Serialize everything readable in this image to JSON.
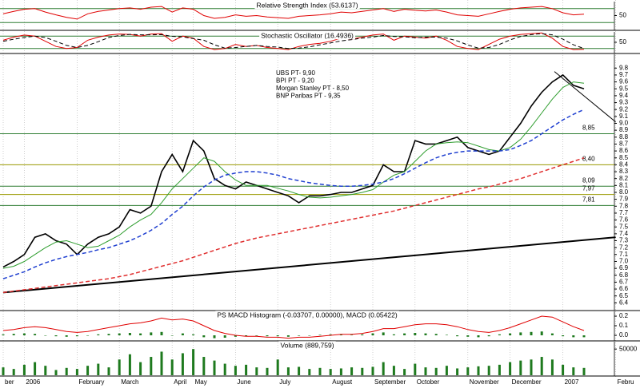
{
  "chart_data": [
    {
      "type": "line",
      "title": "Relative Strength Index (53.6137)",
      "ylim": [
        10,
        90
      ],
      "yticks": [
        50
      ],
      "levels": [
        30,
        70
      ],
      "level_color": "#2e7d32",
      "series": [
        {
          "color": "#e00000",
          "values": [
            55,
            62,
            68,
            70,
            60,
            52,
            45,
            40,
            55,
            62,
            66,
            70,
            72,
            68,
            74,
            76,
            60,
            72,
            68,
            50,
            42,
            45,
            52,
            48,
            50,
            46,
            44,
            42,
            48,
            50,
            52,
            55,
            60,
            58,
            62,
            66,
            70,
            62,
            68,
            65,
            63,
            66,
            60,
            52,
            50,
            48,
            55,
            62,
            68,
            72,
            74,
            76,
            70,
            58,
            52,
            54
          ]
        }
      ]
    },
    {
      "type": "line",
      "title": "Stochastic Oscillator (16.4936)",
      "ylim": [
        0,
        100
      ],
      "yticks": [
        50
      ],
      "levels": [
        20,
        80
      ],
      "level_color": "#2e7d32",
      "series": [
        {
          "color": "#e00000",
          "values": [
            60,
            75,
            85,
            80,
            55,
            30,
            20,
            25,
            60,
            75,
            85,
            90,
            88,
            80,
            90,
            92,
            55,
            80,
            70,
            30,
            15,
            20,
            40,
            30,
            35,
            25,
            20,
            15,
            30,
            40,
            45,
            55,
            70,
            65,
            75,
            85,
            90,
            60,
            80,
            75,
            70,
            80,
            60,
            30,
            20,
            15,
            40,
            65,
            80,
            88,
            92,
            95,
            70,
            30,
            15,
            16
          ]
        },
        {
          "color": "#000000",
          "dash": true,
          "values": [
            55,
            65,
            73,
            80,
            73,
            55,
            35,
            25,
            35,
            53,
            73,
            83,
            88,
            86,
            86,
            87,
            79,
            76,
            68,
            60,
            38,
            22,
            25,
            30,
            35,
            30,
            27,
            20,
            22,
            28,
            38,
            47,
            57,
            63,
            70,
            75,
            83,
            78,
            77,
            72,
            75,
            75,
            70,
            57,
            37,
            22,
            25,
            40,
            62,
            78,
            87,
            92,
            86,
            65,
            38,
            20
          ]
        }
      ]
    },
    {
      "type": "line",
      "categories": [
        "ber",
        null,
        "2006",
        null,
        null,
        null,
        null,
        "February",
        null,
        null,
        null,
        "March",
        null,
        null,
        null,
        null,
        "April",
        null,
        "May",
        null,
        null,
        null,
        "June",
        null,
        null,
        null,
        "July",
        null,
        null,
        null,
        null,
        "August",
        null,
        null,
        null,
        "September",
        null,
        null,
        null,
        "October",
        null,
        null,
        null,
        null,
        "November",
        null,
        null,
        null,
        "December",
        null,
        null,
        null,
        null,
        "2007",
        null,
        null,
        null,
        null,
        "Febru"
      ],
      "ylim": [
        6.3,
        10.0
      ],
      "yticks": [
        6.4,
        6.5,
        6.6,
        6.7,
        6.8,
        6.9,
        {
          "value": 7,
          "label": "7.0"
        },
        7.1,
        7.2,
        7.3,
        7.4,
        7.5,
        7.6,
        7.7,
        7.8,
        7.9,
        {
          "value": 8,
          "label": "8.0"
        },
        8.1,
        8.2,
        8.3,
        8.4,
        8.5,
        8.6,
        8.7,
        8.8,
        8.9,
        {
          "value": 9,
          "label": "9.0"
        },
        9.1,
        9.2,
        9.3,
        9.4,
        9.5,
        9.6,
        9.7,
        9.8
      ],
      "levels": [
        {
          "value": 8.85,
          "label": "8,85",
          "color": "#2e7d32"
        },
        {
          "value": 8.4,
          "label": "8,40",
          "color": "#9a9a00"
        },
        {
          "value": 8.09,
          "label": "8,09",
          "color": "#2e7d32"
        },
        {
          "value": 7.97,
          "label": "7,97",
          "color": "#9a9a00"
        },
        {
          "value": 7.81,
          "label": "7,81",
          "color": "#2e7d32"
        }
      ],
      "trendlines": [
        {
          "x": [
            0,
            58
          ],
          "y": [
            6.55,
            7.35
          ]
        },
        {
          "x": [
            52.2,
            58
          ],
          "y": [
            9.75,
            9.02
          ]
        }
      ],
      "annotations": [
        "UBS PT- 9,90",
        "BPI PT - 9,20",
        "Morgan Stanley PT - 8,50",
        "BNP Paribas PT - 9,35"
      ],
      "series": [
        {
          "color": "#000000",
          "width": 1.6,
          "values": [
            6.92,
            7.0,
            7.1,
            7.35,
            7.4,
            7.3,
            7.25,
            7.1,
            7.25,
            7.35,
            7.4,
            7.5,
            7.75,
            7.7,
            7.8,
            8.3,
            8.55,
            8.3,
            8.75,
            8.6,
            8.2,
            8.1,
            8.05,
            8.15,
            8.1,
            8.05,
            8.0,
            7.95,
            7.85,
            7.95,
            7.95,
            7.97,
            8.0,
            8.0,
            8.05,
            8.1,
            8.4,
            8.3,
            8.3,
            8.75,
            8.7,
            8.7,
            8.75,
            8.8,
            8.65,
            8.6,
            8.55,
            8.6,
            8.8,
            9.0,
            9.25,
            9.45,
            9.6,
            9.7,
            9.55,
            9.5,
            null,
            null,
            null
          ]
        },
        {
          "color": "#2e9d2e",
          "width": 1,
          "values": [
            6.9,
            6.93,
            7.0,
            7.1,
            7.2,
            7.28,
            7.3,
            7.25,
            7.2,
            7.22,
            7.3,
            7.38,
            7.5,
            7.6,
            7.68,
            7.85,
            8.05,
            8.2,
            8.35,
            8.5,
            8.45,
            8.3,
            8.18,
            8.1,
            8.1,
            8.1,
            8.06,
            8.02,
            7.97,
            7.93,
            7.92,
            7.93,
            7.95,
            7.97,
            8.0,
            8.04,
            8.15,
            8.25,
            8.3,
            8.45,
            8.6,
            8.7,
            8.72,
            8.73,
            8.72,
            8.67,
            8.62,
            8.6,
            8.65,
            8.77,
            8.95,
            9.15,
            9.35,
            9.52,
            9.6,
            9.58,
            null,
            null,
            null
          ]
        },
        {
          "color": "#1f3fd0",
          "dash": true,
          "width": 1.5,
          "values": [
            6.75,
            6.8,
            6.85,
            6.92,
            6.98,
            7.03,
            7.07,
            7.1,
            7.13,
            7.17,
            7.2,
            7.25,
            7.3,
            7.37,
            7.45,
            7.55,
            7.68,
            7.8,
            7.95,
            8.08,
            8.18,
            8.25,
            8.28,
            8.3,
            8.3,
            8.28,
            8.25,
            8.2,
            8.17,
            8.14,
            8.12,
            8.1,
            8.09,
            8.09,
            8.1,
            8.12,
            8.15,
            8.2,
            8.27,
            8.35,
            8.43,
            8.5,
            8.55,
            8.58,
            8.6,
            8.6,
            8.6,
            8.6,
            8.62,
            8.68,
            8.75,
            8.85,
            8.95,
            9.05,
            9.13,
            9.2,
            null,
            null,
            null
          ]
        },
        {
          "color": "#e03030",
          "dash": true,
          "width": 1.5,
          "values": [
            6.55,
            6.57,
            6.59,
            6.61,
            6.63,
            6.65,
            6.67,
            6.69,
            6.71,
            6.73,
            6.75,
            6.78,
            6.81,
            6.85,
            6.89,
            6.93,
            6.97,
            7.01,
            7.06,
            7.11,
            7.16,
            7.21,
            7.26,
            7.3,
            7.34,
            7.37,
            7.4,
            7.43,
            7.46,
            7.49,
            7.52,
            7.55,
            7.58,
            7.61,
            7.64,
            7.67,
            7.7,
            7.73,
            7.77,
            7.81,
            7.85,
            7.89,
            7.93,
            7.97,
            8.01,
            8.05,
            8.08,
            8.12,
            8.16,
            8.2,
            8.25,
            8.3,
            8.35,
            8.4,
            8.45,
            8.5,
            null,
            null,
            null
          ]
        }
      ]
    },
    {
      "type": "macd",
      "title": "PS MACD Histogram (-0.03707, 0.00000), MACD (0.05422)",
      "ylim": [
        -0.05,
        0.25
      ],
      "yticks": [
        0.2,
        0.1,
        {
          "value": 0,
          "label": "0.0"
        }
      ],
      "series": [
        {
          "color": "#1e7a1e",
          "values": [
            0.01,
            0.015,
            0.02,
            0.015,
            0.0,
            -0.01,
            -0.015,
            -0.01,
            0.0,
            0.01,
            0.015,
            0.02,
            0.025,
            0.02,
            0.03,
            0.035,
            0.0,
            0.02,
            0.01,
            -0.02,
            -0.03,
            -0.025,
            -0.015,
            -0.01,
            -0.005,
            -0.01,
            -0.01,
            -0.015,
            -0.005,
            0.0,
            0.005,
            0.01,
            0.01,
            0.005,
            0.01,
            0.02,
            0.03,
            0.01,
            0.02,
            0.025,
            0.02,
            0.015,
            0.005,
            -0.01,
            -0.015,
            -0.02,
            -0.01,
            0.01,
            0.02,
            0.03,
            0.035,
            0.04,
            0.02,
            -0.01,
            -0.02,
            -0.02
          ]
        },
        {
          "color": "#e00000",
          "values": [
            0.05,
            0.06,
            0.08,
            0.09,
            0.08,
            0.06,
            0.04,
            0.03,
            0.04,
            0.06,
            0.08,
            0.1,
            0.12,
            0.13,
            0.15,
            0.18,
            0.16,
            0.17,
            0.15,
            0.1,
            0.05,
            0.02,
            0.0,
            -0.01,
            -0.01,
            -0.02,
            -0.02,
            -0.03,
            -0.02,
            -0.02,
            -0.01,
            0.0,
            0.01,
            0.01,
            0.02,
            0.04,
            0.07,
            0.07,
            0.09,
            0.11,
            0.12,
            0.12,
            0.11,
            0.09,
            0.06,
            0.04,
            0.03,
            0.05,
            0.08,
            0.12,
            0.16,
            0.2,
            0.19,
            0.14,
            0.09,
            0.05
          ]
        }
      ]
    },
    {
      "type": "bar",
      "title": "Volume (889,759)",
      "ylim": [
        0,
        64000
      ],
      "yticks": [
        50000
      ],
      "series": [
        {
          "color": "#1e7a1e",
          "values": [
            15000,
            12000,
            20000,
            25000,
            18000,
            10000,
            14000,
            12000,
            18000,
            22000,
            15000,
            30000,
            40000,
            25000,
            35000,
            45000,
            30000,
            42000,
            50000,
            35000,
            28000,
            22000,
            18000,
            20000,
            15000,
            14000,
            30000,
            15000,
            16000,
            12000,
            14000,
            12000,
            13000,
            15000,
            14000,
            16000,
            25000,
            18000,
            12000,
            22000,
            15000,
            14000,
            18000,
            13000,
            15000,
            17000,
            18000,
            20000,
            25000,
            28000,
            30000,
            35000,
            30000,
            20000,
            15000,
            14000
          ]
        }
      ]
    }
  ]
}
